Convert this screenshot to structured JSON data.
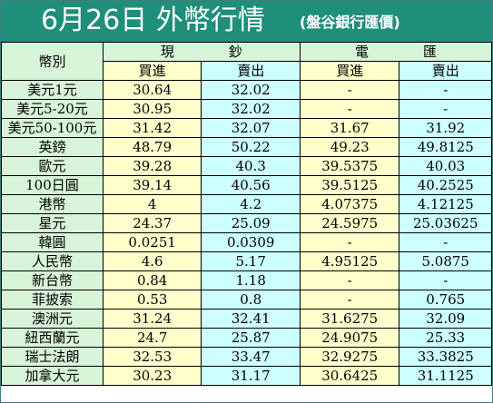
{
  "title": {
    "main": "6月26日 外幣行情",
    "sub": "(盤谷銀行匯價)"
  },
  "header": {
    "currency_label": "幣別",
    "cash_label": "現鈔",
    "wire_label": "電匯",
    "buy_label": "買進",
    "sell_label": "賣出"
  },
  "rows": [
    {
      "currency": "美元1元",
      "cash_buy": "30.64",
      "cash_sell": "32.02",
      "wire_buy": "-",
      "wire_sell": "-"
    },
    {
      "currency": "美元5-20元",
      "cash_buy": "30.95",
      "cash_sell": "32.02",
      "wire_buy": "-",
      "wire_sell": "-"
    },
    {
      "currency": "美元50-100元",
      "cash_buy": "31.42",
      "cash_sell": "32.07",
      "wire_buy": "31.67",
      "wire_sell": "31.92"
    },
    {
      "currency": "英鎊",
      "cash_buy": "48.79",
      "cash_sell": "50.22",
      "wire_buy": "49.23",
      "wire_sell": "49.8125"
    },
    {
      "currency": "歐元",
      "cash_buy": "39.28",
      "cash_sell": "40.3",
      "wire_buy": "39.5375",
      "wire_sell": "40.03"
    },
    {
      "currency": "100日圓",
      "cash_buy": "39.14",
      "cash_sell": "40.56",
      "wire_buy": "39.5125",
      "wire_sell": "40.2525"
    },
    {
      "currency": "港幣",
      "cash_buy": "4",
      "cash_sell": "4.2",
      "wire_buy": "4.07375",
      "wire_sell": "4.12125"
    },
    {
      "currency": "星元",
      "cash_buy": "24.37",
      "cash_sell": "25.09",
      "wire_buy": "24.5975",
      "wire_sell": "25.03625"
    },
    {
      "currency": "韓圓",
      "cash_buy": "0.0251",
      "cash_sell": "0.0309",
      "wire_buy": "-",
      "wire_sell": "-"
    },
    {
      "currency": "人民幣",
      "cash_buy": "4.6",
      "cash_sell": "5.17",
      "wire_buy": "4.95125",
      "wire_sell": "5.0875"
    },
    {
      "currency": "新台幣",
      "cash_buy": "0.84",
      "cash_sell": "1.18",
      "wire_buy": "-",
      "wire_sell": "-"
    },
    {
      "currency": "菲披索",
      "cash_buy": "0.53",
      "cash_sell": "0.8",
      "wire_buy": "-",
      "wire_sell": "0.765"
    },
    {
      "currency": "澳洲元",
      "cash_buy": "31.24",
      "cash_sell": "32.41",
      "wire_buy": "31.6275",
      "wire_sell": "32.09"
    },
    {
      "currency": "紐西蘭元",
      "cash_buy": "24.7",
      "cash_sell": "25.87",
      "wire_buy": "24.9075",
      "wire_sell": "25.33"
    },
    {
      "currency": "瑞士法朗",
      "cash_buy": "32.53",
      "cash_sell": "33.47",
      "wire_buy": "32.9275",
      "wire_sell": "33.3825"
    },
    {
      "currency": "加拿大元",
      "cash_buy": "30.23",
      "cash_sell": "31.17",
      "wire_buy": "30.6425",
      "wire_sell": "31.1125"
    }
  ],
  "colors": {
    "title_bg": "#1f8f7a",
    "header_bg": "#d8f4d8",
    "buy_bg": "#ffffcc",
    "sell_bg": "#ccffff"
  }
}
